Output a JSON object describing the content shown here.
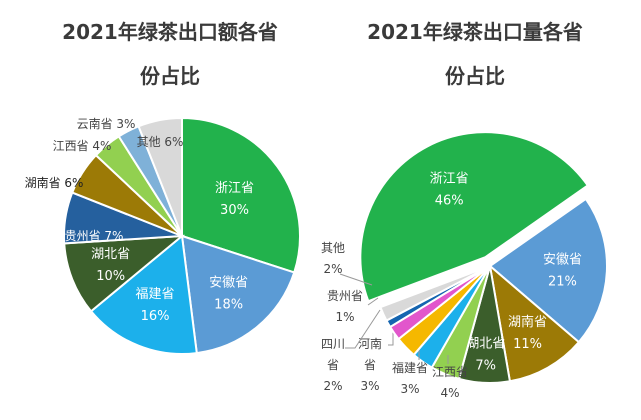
{
  "chart_data": [
    {
      "type": "pie",
      "title_line1": "2021年绿茶出口额各省",
      "title_line2": "份占比",
      "unit": "%",
      "slices": [
        {
          "label": "浙江省",
          "value": 30,
          "color": "#22b24c"
        },
        {
          "label": "安徽省",
          "value": 18,
          "color": "#5b9bd5"
        },
        {
          "label": "福建省",
          "value": 16,
          "color": "#1cb0eb"
        },
        {
          "label": "湖北省",
          "value": 10,
          "color": "#3b5e2b"
        },
        {
          "label": "贵州省",
          "value": 7,
          "color": "#25609e"
        },
        {
          "label": "湖南省",
          "value": 6,
          "color": "#9c7a06"
        },
        {
          "label": "江西省",
          "value": 4,
          "color": "#92d050"
        },
        {
          "label": "云南省",
          "value": 3,
          "color": "#7fb1d8"
        },
        {
          "label": "其他",
          "value": 6,
          "color": "#d9d9d9"
        }
      ]
    },
    {
      "type": "pie",
      "title_line1": "2021年绿茶出口量各省",
      "title_line2": "份占比",
      "unit": "%",
      "slices": [
        {
          "label": "浙江省",
          "value": 46,
          "color": "#22b24c"
        },
        {
          "label": "安徽省",
          "value": 21,
          "color": "#5b9bd5"
        },
        {
          "label": "湖南省",
          "value": 11,
          "color": "#9c7a06"
        },
        {
          "label": "湖北省",
          "value": 7,
          "color": "#3b5e2b"
        },
        {
          "label": "江西省",
          "value": 4,
          "color": "#92d050"
        },
        {
          "label": "福建省",
          "value": 3,
          "color": "#1cb0eb"
        },
        {
          "label": "河南省",
          "value": 3,
          "color": "#f5b800"
        },
        {
          "label": "四川省",
          "value": 2,
          "color": "#e256cc"
        },
        {
          "label": "贵州省",
          "value": 1,
          "color": "#1565b0"
        },
        {
          "label": "其他",
          "value": 2,
          "color": "#d9d9d9"
        }
      ]
    }
  ]
}
